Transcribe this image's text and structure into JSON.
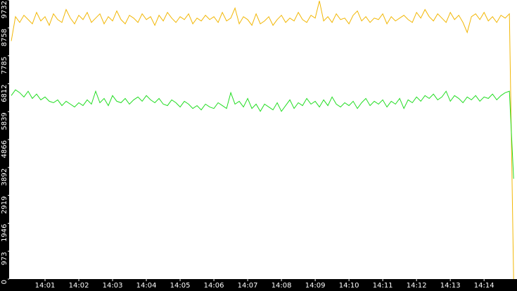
{
  "chart_data": {
    "type": "line",
    "series": [
      {
        "name": null,
        "color": "#f2b705",
        "values": [
          8300,
          9150,
          8950,
          9200,
          9050,
          8900,
          9300,
          9000,
          9150,
          8850,
          9250,
          9050,
          8950,
          9400,
          9100,
          8900,
          9200,
          9050,
          9300,
          8950,
          9100,
          9250,
          8900,
          9150,
          9000,
          9350,
          9050,
          8900,
          9200,
          9100,
          8950,
          9250,
          9050,
          9150,
          8850,
          9200,
          9000,
          9300,
          9100,
          8950,
          9150,
          9050,
          9250,
          8900,
          9100,
          9000,
          9200,
          9050,
          9150,
          8950,
          9300,
          9000,
          9100,
          9450,
          8900,
          9150,
          9050,
          8850,
          9250,
          8900,
          9000,
          9150,
          8850,
          9050,
          9200,
          8950,
          9100,
          9000,
          9300,
          9050,
          8950,
          9200,
          9100,
          9700,
          9000,
          9150,
          8950,
          9250,
          9050,
          9100,
          8900,
          9200,
          9350,
          9000,
          9150,
          8950,
          9100,
          9050,
          9250,
          8900,
          9150,
          9000,
          9100,
          9200,
          9050,
          8950,
          9300,
          9100,
          9400,
          9150,
          9000,
          9250,
          9100,
          8950,
          9300,
          9050,
          9200,
          8950,
          8600,
          9150,
          9250,
          9050,
          9300,
          9000,
          9150,
          8950,
          9200,
          9100,
          9250,
          0
        ]
      },
      {
        "name": null,
        "color": "#22dd22",
        "values": [
          6400,
          6600,
          6500,
          6350,
          6550,
          6300,
          6450,
          6250,
          6350,
          6200,
          6150,
          6250,
          6050,
          6200,
          6100,
          6000,
          6150,
          6050,
          6250,
          6100,
          6550,
          6150,
          6300,
          6050,
          6400,
          6200,
          6150,
          6300,
          6100,
          6250,
          6350,
          6200,
          6400,
          6250,
          6150,
          6300,
          6100,
          6050,
          6250,
          6150,
          6000,
          6200,
          6100,
          5950,
          6050,
          5900,
          6100,
          6000,
          5950,
          6150,
          6050,
          5950,
          6500,
          6100,
          6200,
          6000,
          6300,
          5950,
          6100,
          5850,
          6100,
          6000,
          5900,
          6150,
          5850,
          6050,
          6250,
          5950,
          6150,
          6050,
          6300,
          6100,
          6200,
          6000,
          6250,
          6050,
          6350,
          6100,
          6000,
          6150,
          6050,
          6200,
          5950,
          6150,
          6300,
          6050,
          6200,
          6100,
          6250,
          6000,
          6200,
          6100,
          6300,
          5950,
          6250,
          6150,
          6350,
          6200,
          6400,
          6300,
          6450,
          6250,
          6350,
          6550,
          6200,
          6400,
          6300,
          6150,
          6350,
          6250,
          6400,
          6200,
          6350,
          6300,
          6450,
          6250,
          6400,
          6500,
          6550,
          3500
        ]
      }
    ],
    "xlim": [
      -0.5,
      119.8
    ],
    "xticks": [
      {
        "value": 8,
        "label": "14:01"
      },
      {
        "value": 16,
        "label": "14:02"
      },
      {
        "value": 24,
        "label": "14:03"
      },
      {
        "value": 32,
        "label": "14:04"
      },
      {
        "value": 40,
        "label": "14:05"
      },
      {
        "value": 48,
        "label": "14:06"
      },
      {
        "value": 56,
        "label": "14:07"
      },
      {
        "value": 64,
        "label": "14:08"
      },
      {
        "value": 72,
        "label": "14:09"
      },
      {
        "value": 80,
        "label": "14:10"
      },
      {
        "value": 88,
        "label": "14:11"
      },
      {
        "value": 96,
        "label": "14:12"
      },
      {
        "value": 104,
        "label": "14:13"
      },
      {
        "value": 112,
        "label": "14:14"
      }
    ],
    "ylim": [
      0,
      9732
    ],
    "yticks": [
      0,
      973,
      1946,
      2919,
      3892,
      4866,
      5839,
      6812,
      7785,
      8758,
      9732
    ],
    "grid": false
  }
}
